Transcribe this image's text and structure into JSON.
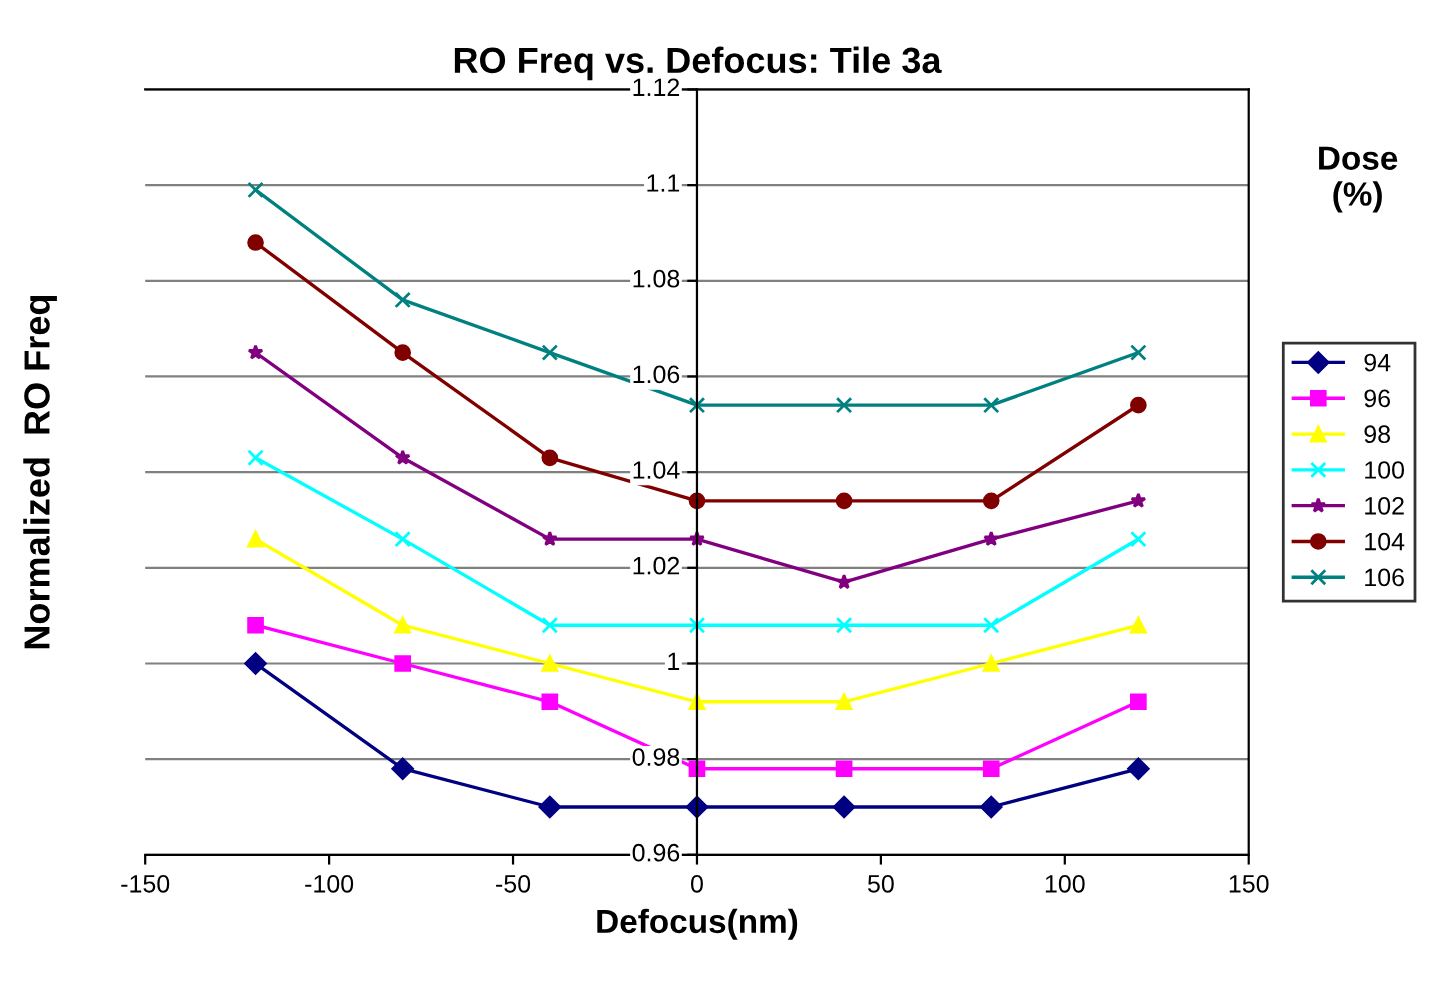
{
  "chart_data": {
    "type": "line",
    "title": "RO Freq vs. Defocus: Tile 3a",
    "xlabel": "Defocus(nm)",
    "ylabel": "Normalized  RO Freq",
    "legend_title": "Dose\n(%)",
    "x": [
      -120,
      -80,
      -40,
      0,
      40,
      80,
      120
    ],
    "series": [
      {
        "name": "94",
        "color": "#000080",
        "marker": "diamond",
        "values": [
          1.0,
          0.978,
          0.97,
          0.97,
          0.97,
          0.97,
          0.978
        ]
      },
      {
        "name": "96",
        "color": "#ff00ff",
        "marker": "square",
        "values": [
          1.008,
          1.0,
          0.992,
          0.978,
          0.978,
          0.978,
          0.992
        ]
      },
      {
        "name": "98",
        "color": "#ffff00",
        "marker": "triangle",
        "values": [
          1.026,
          1.008,
          1.0,
          0.992,
          0.992,
          1.0,
          1.008
        ]
      },
      {
        "name": "100",
        "color": "#00ffff",
        "marker": "cross",
        "values": [
          1.043,
          1.026,
          1.008,
          1.008,
          1.008,
          1.008,
          1.026
        ]
      },
      {
        "name": "102",
        "color": "#800080",
        "marker": "star",
        "values": [
          1.065,
          1.043,
          1.026,
          1.026,
          1.017,
          1.026,
          1.034
        ]
      },
      {
        "name": "104",
        "color": "#800000",
        "marker": "circle",
        "values": [
          1.088,
          1.065,
          1.043,
          1.034,
          1.034,
          1.034,
          1.054
        ]
      },
      {
        "name": "106",
        "color": "#008080",
        "marker": "cross",
        "values": [
          1.099,
          1.076,
          1.065,
          1.054,
          1.054,
          1.054,
          1.065
        ]
      }
    ],
    "xlim": [
      -150,
      150
    ],
    "xticks": [
      -150,
      -100,
      -50,
      0,
      50,
      100,
      150
    ],
    "ylim": [
      0.96,
      1.12
    ],
    "yticks": [
      0.96,
      0.98,
      1,
      1.02,
      1.04,
      1.06,
      1.08,
      1.1,
      1.12
    ],
    "grid": "y",
    "legend": "right",
    "line_style": "solid"
  }
}
